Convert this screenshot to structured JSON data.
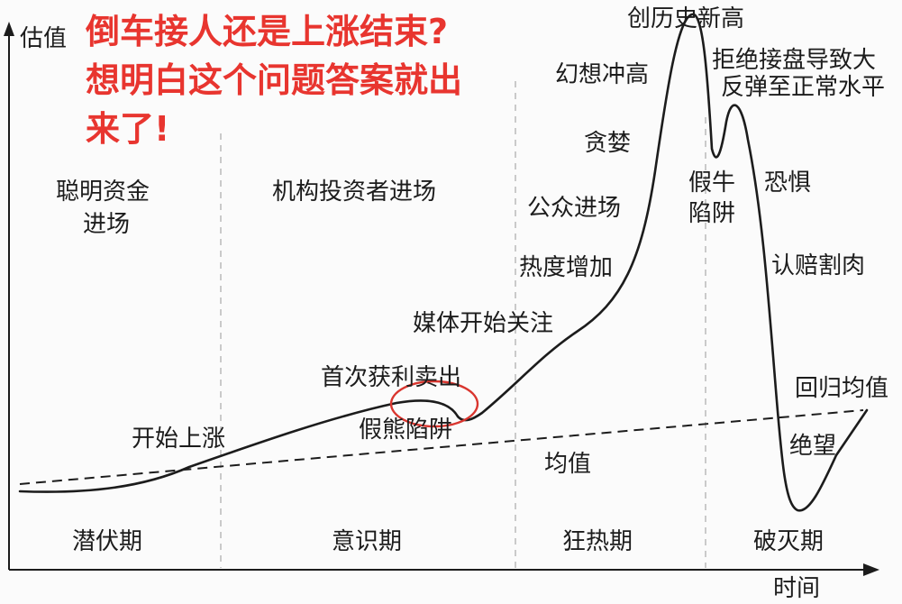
{
  "headline": {
    "line1": "倒车接人还是上涨结束?",
    "line2": "想明白这个问题答案就出",
    "line3": "来了!"
  },
  "axes": {
    "y_label": "估值",
    "x_label": "时间"
  },
  "phases": {
    "latent": "潜伏期",
    "awareness": "意识期",
    "mania": "狂热期",
    "blowoff": "破灭期"
  },
  "participants": {
    "smart_money_line1": "聪明资金",
    "smart_money_line2": "进场",
    "institutions": "机构投资者进场",
    "public": "公众进场"
  },
  "annotations": {
    "start_rise": "开始上涨",
    "first_selloff": "首次获利卖出",
    "bear_trap": "假熊陷阱",
    "media": "媒体开始关注",
    "heat": "热度增加",
    "greed": "贪婪",
    "illusion": "幻想冲高",
    "new_high": "创历史新高",
    "bull_trap_line1": "假牛",
    "bull_trap_line2": "陷阱",
    "rebound_line1": "拒绝接盘导致大",
    "rebound_line2": "反弹至正常水平",
    "fear": "恐惧",
    "capitulation": "认赔割肉",
    "despair": "绝望",
    "return_mean": "回归均值",
    "mean": "均值"
  },
  "colors": {
    "headline": "#e8352f",
    "circle": "#d9362f",
    "ink": "#1c1c1c"
  }
}
